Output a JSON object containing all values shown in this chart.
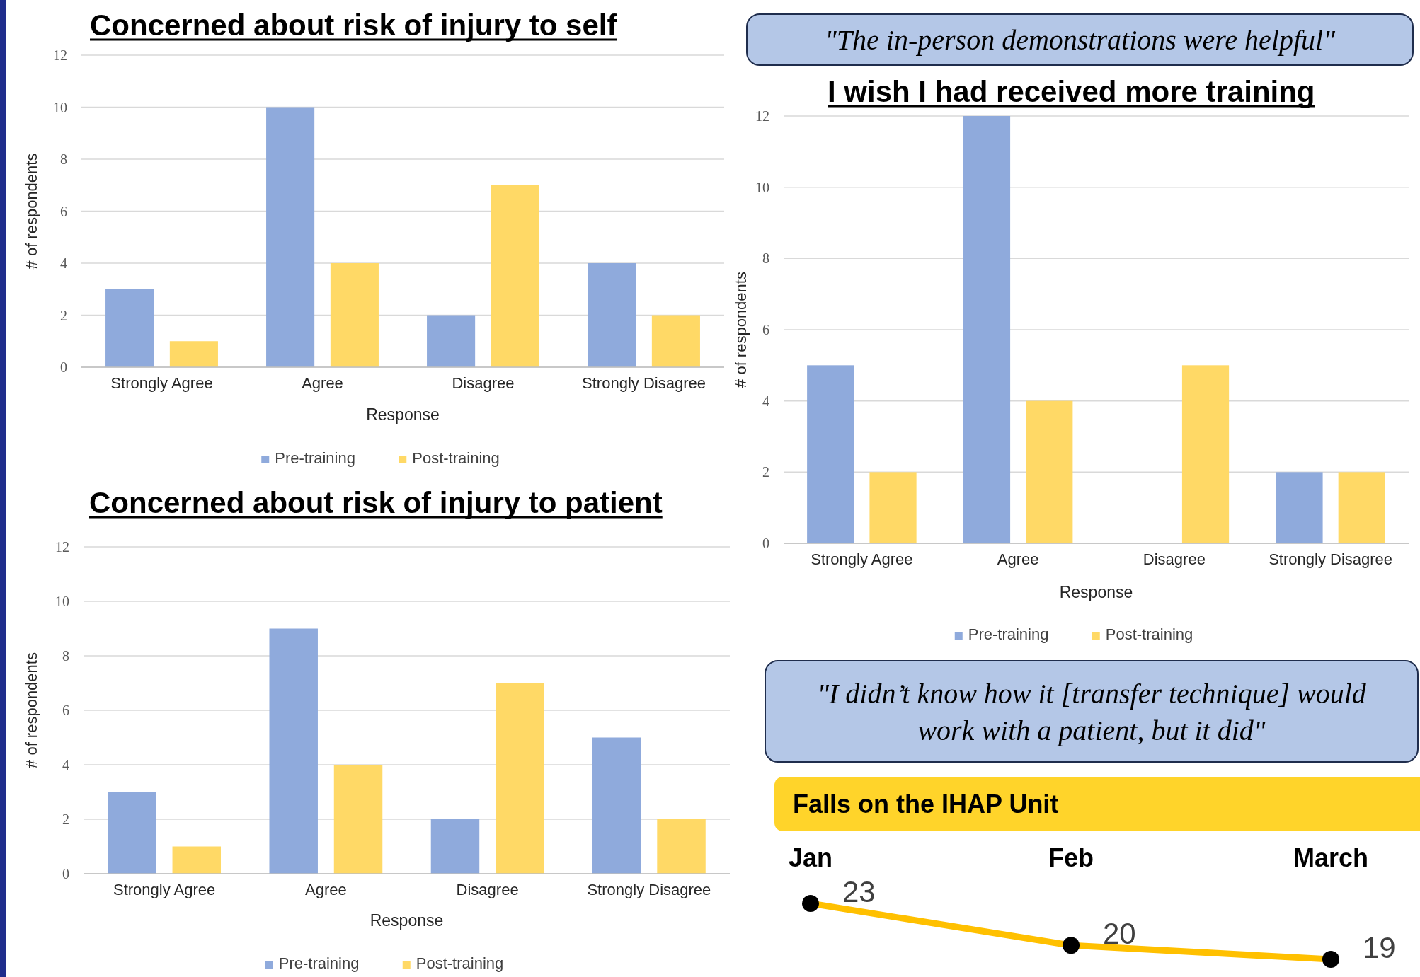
{
  "chart_data": [
    {
      "type": "bar",
      "title": "Concerned about risk of injury to self",
      "xlabel": "Response",
      "ylabel": "# of respondents",
      "categories": [
        "Strongly Agree",
        "Agree",
        "Disagree",
        "Strongly Disagree"
      ],
      "series": [
        {
          "name": "Pre-training",
          "color": "#8faadc",
          "values": [
            3,
            10,
            2,
            4
          ]
        },
        {
          "name": "Post-training",
          "color": "#ffd966",
          "values": [
            1,
            4,
            7,
            2
          ]
        }
      ],
      "ylim": [
        0,
        12
      ],
      "yticks": [
        0,
        2,
        4,
        6,
        8,
        10,
        12
      ],
      "grid": "y",
      "legend": "bottom"
    },
    {
      "type": "other",
      "annotations": [
        "\"The in-person demonstrations were helpful\""
      ]
    },
    {
      "type": "bar",
      "title": "I wish I had received more training",
      "xlabel": "Response",
      "ylabel": "# of respondents",
      "categories": [
        "Strongly Agree",
        "Agree",
        "Disagree",
        "Strongly Disagree"
      ],
      "series": [
        {
          "name": "Pre-training",
          "color": "#8faadc",
          "values": [
            5,
            12,
            0,
            2
          ]
        },
        {
          "name": "Post-training",
          "color": "#ffd966",
          "values": [
            2,
            4,
            5,
            2
          ]
        }
      ],
      "ylim": [
        0,
        12
      ],
      "yticks": [
        0,
        2,
        4,
        6,
        8,
        10,
        12
      ],
      "grid": "y",
      "legend": "bottom"
    },
    {
      "type": "bar",
      "title": "Concerned about risk of injury to patient",
      "xlabel": "Response",
      "ylabel": "# of respondents",
      "categories": [
        "Strongly Agree",
        "Agree",
        "Disagree",
        "Strongly Disagree"
      ],
      "series": [
        {
          "name": "Pre-training",
          "color": "#8faadc",
          "values": [
            3,
            9,
            2,
            5
          ]
        },
        {
          "name": "Post-training",
          "color": "#ffd966",
          "values": [
            1,
            4,
            7,
            2
          ]
        }
      ],
      "ylim": [
        0,
        12
      ],
      "yticks": [
        0,
        2,
        4,
        6,
        8,
        10,
        12
      ],
      "grid": "y",
      "legend": "bottom"
    },
    {
      "type": "other",
      "annotations": [
        "\"I didn’t know how it [transfer technique] would work with a patient, but it did\""
      ]
    },
    {
      "type": "line",
      "title": "Falls on the IHAP Unit",
      "categories": [
        "Jan",
        "Feb",
        "March"
      ],
      "series": [
        {
          "color": "#ffc000",
          "values": [
            23,
            20,
            19
          ]
        }
      ],
      "marker": "circle",
      "data_labels": true
    }
  ]
}
